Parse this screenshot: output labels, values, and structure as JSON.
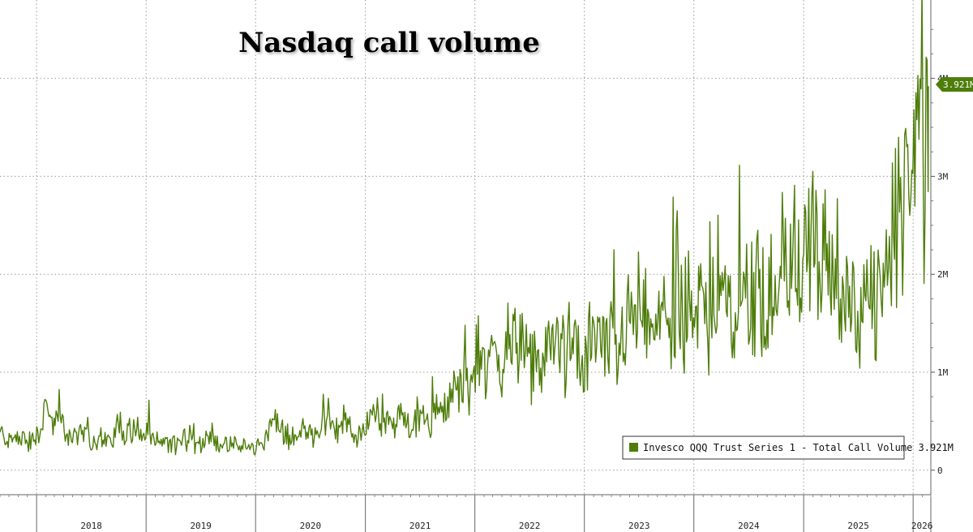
{
  "chart_data": {
    "type": "line",
    "title": "Nasdaq call volume",
    "xlabel": "",
    "ylabel": "",
    "x_tick_labels": [
      "2018",
      "2019",
      "2020",
      "2021",
      "2022",
      "2023",
      "2024",
      "2025",
      "2026"
    ],
    "y_tick_labels": [
      "0",
      "1M",
      "2M",
      "3M",
      "4M"
    ],
    "xlim": [
      "2017-09-01",
      "2026-03-01"
    ],
    "ylim": [
      -250000,
      4800000
    ],
    "grid": true,
    "legend_position": "bottom-right",
    "last_value_label": "3.921M",
    "colors": {
      "series": "#4e7d0a",
      "grid": "#9a9a9a",
      "legend_border": "#333333"
    },
    "series": [
      {
        "name": "Invesco QQQ Trust Series 1 - Total Call Volume 3.921M",
        "points": [
          [
            "2017-09",
            380000
          ],
          [
            "2017-10",
            300000
          ],
          [
            "2017-11",
            350000
          ],
          [
            "2017-12",
            280000
          ],
          [
            "2018-01",
            330000
          ],
          [
            "2018-02",
            650000
          ],
          [
            "2018-03",
            480000
          ],
          [
            "2018-04",
            420000
          ],
          [
            "2018-05",
            350000
          ],
          [
            "2018-06",
            380000
          ],
          [
            "2018-07",
            300000
          ],
          [
            "2018-08",
            330000
          ],
          [
            "2018-09",
            280000
          ],
          [
            "2018-10",
            480000
          ],
          [
            "2018-11",
            400000
          ],
          [
            "2018-12",
            430000
          ],
          [
            "2019-01",
            350000
          ],
          [
            "2019-02",
            280000
          ],
          [
            "2019-03",
            300000
          ],
          [
            "2019-04",
            260000
          ],
          [
            "2019-05",
            350000
          ],
          [
            "2019-06",
            300000
          ],
          [
            "2019-07",
            260000
          ],
          [
            "2019-08",
            380000
          ],
          [
            "2019-09",
            270000
          ],
          [
            "2019-10",
            250000
          ],
          [
            "2019-11",
            240000
          ],
          [
            "2019-12",
            220000
          ],
          [
            "2020-01",
            230000
          ],
          [
            "2020-02",
            330000
          ],
          [
            "2020-03",
            500000
          ],
          [
            "2020-04",
            380000
          ],
          [
            "2020-05",
            330000
          ],
          [
            "2020-06",
            400000
          ],
          [
            "2020-07",
            380000
          ],
          [
            "2020-08",
            420000
          ],
          [
            "2020-09",
            550000
          ],
          [
            "2020-10",
            420000
          ],
          [
            "2020-11",
            450000
          ],
          [
            "2020-12",
            330000
          ],
          [
            "2021-01",
            400000
          ],
          [
            "2021-02",
            650000
          ],
          [
            "2021-03",
            550000
          ],
          [
            "2021-04",
            480000
          ],
          [
            "2021-05",
            520000
          ],
          [
            "2021-06",
            450000
          ],
          [
            "2021-07",
            500000
          ],
          [
            "2021-08",
            480000
          ],
          [
            "2021-09",
            600000
          ],
          [
            "2021-10",
            650000
          ],
          [
            "2021-11",
            800000
          ],
          [
            "2021-12",
            850000
          ],
          [
            "2022-01",
            1100000
          ],
          [
            "2022-02",
            1150000
          ],
          [
            "2022-03",
            1200000
          ],
          [
            "2022-04",
            1100000
          ],
          [
            "2022-05",
            1300000
          ],
          [
            "2022-06",
            1200000
          ],
          [
            "2022-07",
            1050000
          ],
          [
            "2022-08",
            1100000
          ],
          [
            "2022-09",
            1200000
          ],
          [
            "2022-10",
            1300000
          ],
          [
            "2022-11",
            1250000
          ],
          [
            "2022-12",
            1150000
          ],
          [
            "2023-01",
            1200000
          ],
          [
            "2023-02",
            1300000
          ],
          [
            "2023-03",
            1350000
          ],
          [
            "2023-04",
            1250000
          ],
          [
            "2023-05",
            1400000
          ],
          [
            "2023-06",
            1550000
          ],
          [
            "2023-07",
            1600000
          ],
          [
            "2023-08",
            1450000
          ],
          [
            "2023-09",
            1500000
          ],
          [
            "2023-10",
            1600000
          ],
          [
            "2023-11",
            1550000
          ],
          [
            "2023-12",
            1650000
          ],
          [
            "2024-01",
            1550000
          ],
          [
            "2024-02",
            1700000
          ],
          [
            "2024-03",
            1600000
          ],
          [
            "2024-04",
            1750000
          ],
          [
            "2024-05",
            1800000
          ],
          [
            "2024-06",
            1700000
          ],
          [
            "2024-07",
            1800000
          ],
          [
            "2024-08",
            1900000
          ],
          [
            "2024-09",
            1850000
          ],
          [
            "2024-10",
            1900000
          ],
          [
            "2024-11",
            2100000
          ],
          [
            "2024-12",
            2300000
          ],
          [
            "2025-01",
            2100000
          ],
          [
            "2025-02",
            2200000
          ],
          [
            "2025-03",
            2000000
          ],
          [
            "2025-04",
            1900000
          ],
          [
            "2025-05",
            1750000
          ],
          [
            "2025-06",
            1650000
          ],
          [
            "2025-07",
            1600000
          ],
          [
            "2025-08",
            1650000
          ],
          [
            "2025-09",
            1750000
          ],
          [
            "2025-10",
            1900000
          ],
          [
            "2025-11",
            2400000
          ],
          [
            "2025-12",
            2700000
          ],
          [
            "2026-01",
            2900000
          ],
          [
            "2026-02",
            3921000
          ]
        ]
      }
    ]
  }
}
